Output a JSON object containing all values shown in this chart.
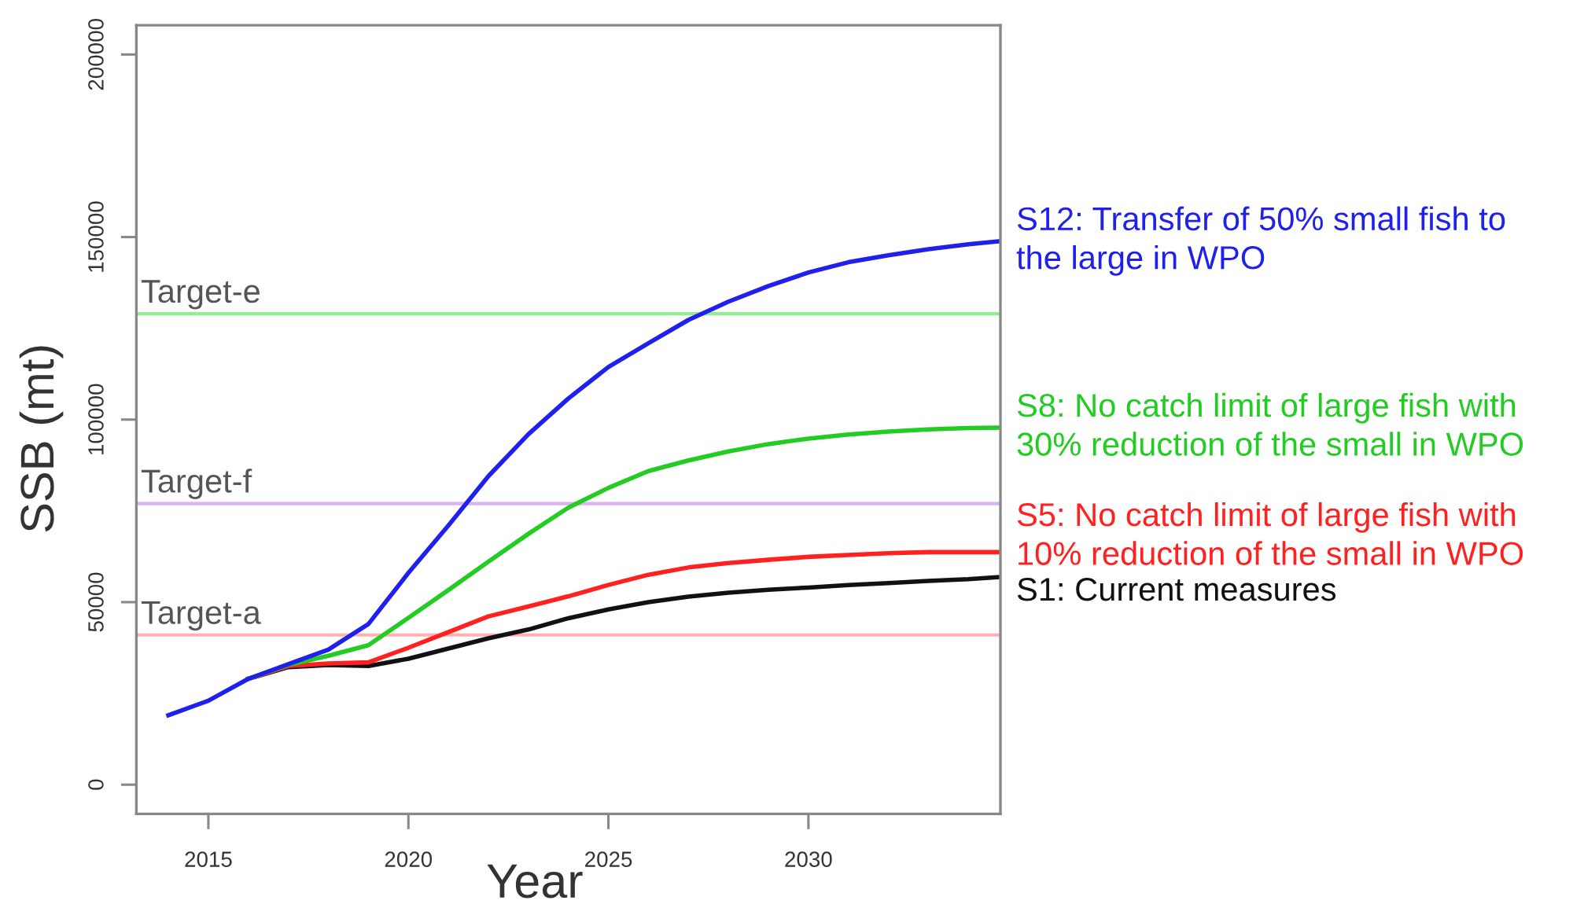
{
  "chart_data": {
    "type": "line",
    "xlabel": "Year",
    "ylabel": "SSB (mt)",
    "x": [
      2014,
      2015,
      2016,
      2017,
      2018,
      2019,
      2020,
      2021,
      2022,
      2023,
      2024,
      2025,
      2026,
      2027,
      2028,
      2029,
      2030,
      2031,
      2032,
      2033,
      2034,
      2034.8
    ],
    "xlim": [
      2013.2,
      2034.8
    ],
    "xticks": [
      2015,
      2020,
      2025,
      2030
    ],
    "ylim": [
      -8000,
      208000
    ],
    "yticks": [
      0,
      50000,
      100000,
      150000,
      200000
    ],
    "line_style": "solid",
    "series": [
      {
        "name": "S1: Current measures",
        "color": "#111111",
        "values": [
          null,
          null,
          29000,
          32200,
          32800,
          32500,
          34500,
          37300,
          40100,
          42500,
          45600,
          48000,
          50000,
          51500,
          52600,
          53400,
          54000,
          54700,
          55200,
          55800,
          56300,
          56900
        ]
      },
      {
        "name": "S5: No catch limit of large fish with\n10% reduction of the small in WPO",
        "color": "#ff2020",
        "values": [
          null,
          null,
          29000,
          32500,
          33200,
          33500,
          37500,
          41800,
          46100,
          48800,
          51600,
          54700,
          57500,
          59500,
          60700,
          61600,
          62400,
          62900,
          63400,
          63700,
          63700,
          63700
        ]
      },
      {
        "name": "S8: No catch limit of large fish with\n30% reduction of the small in WPO",
        "color": "#22cc22",
        "values": [
          null,
          null,
          29000,
          32800,
          35300,
          38200,
          45700,
          53300,
          61100,
          68700,
          75900,
          81300,
          85900,
          88800,
          91300,
          93300,
          94800,
          95900,
          96700,
          97300,
          97700,
          97800
        ]
      },
      {
        "name": "S12: Transfer of 50% small fish to\nthe large in WPO",
        "color": "#2020ee",
        "values": [
          19000,
          23000,
          29000,
          33000,
          37000,
          44000,
          58000,
          71000,
          84500,
          96000,
          105800,
          114400,
          120900,
          127300,
          132300,
          136600,
          140300,
          143100,
          145000,
          146700,
          148000,
          148900
        ]
      }
    ],
    "ref_lines": [
      {
        "axis": "y",
        "value": 129000,
        "label": "Target-e",
        "color": "#90ee90"
      },
      {
        "axis": "y",
        "value": 77000,
        "label": "Target-f",
        "color": "#d8b2f2"
      },
      {
        "axis": "y",
        "value": 41000,
        "label": "Target-a",
        "color": "#ffb0b0"
      }
    ]
  }
}
